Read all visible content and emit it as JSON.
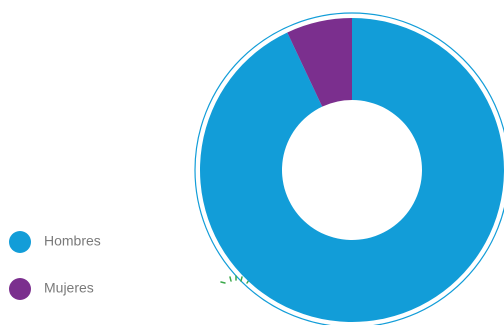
{
  "chart_data": {
    "type": "pie",
    "categories": [
      "Hombres",
      "Mujeres"
    ],
    "values": [
      93,
      7
    ],
    "colors": [
      "#129dd8",
      "#7b2f8e"
    ]
  }
}
